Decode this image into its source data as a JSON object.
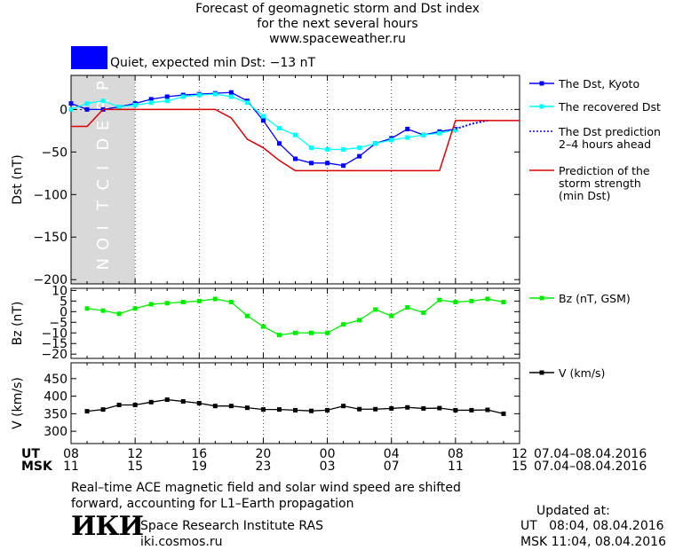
{
  "title": {
    "line1": "Forecast of geomagnetic storm and Dst index",
    "line2": "for the next several hours",
    "line3": "www.spaceweather.ru"
  },
  "status": {
    "text": "Quiet, expected min Dst: −13 nT",
    "color": "#0000ff"
  },
  "colors": {
    "dst_kyoto": "#0000ff",
    "dst_recovered": "#00ffff",
    "prediction_strength": "#dd0000",
    "bz": "#00ee00",
    "v": "#000000",
    "prediction_band": "#d9d9d9"
  },
  "chart_data": [
    {
      "type": "line",
      "panel": "dst",
      "ylabel": "Dst (nT)",
      "ylim": [
        -205,
        40
      ],
      "yticks": [
        0,
        -50,
        -100,
        -150,
        -200
      ],
      "ytick_labels": [
        "0",
        "−50",
        "−100",
        "−150",
        "−200"
      ],
      "prediction_band_x": [
        8,
        12
      ],
      "prediction_band_label": "PREDICTION",
      "series": [
        {
          "name": "The Dst, Kyoto",
          "marker": "square",
          "x": [
            8,
            9,
            10,
            11,
            12,
            13,
            14,
            15,
            16,
            17,
            18,
            19,
            20,
            21,
            22,
            23,
            24,
            25,
            26,
            27,
            28,
            29,
            30,
            31,
            32
          ],
          "values": [
            7,
            0,
            0,
            3,
            7,
            12,
            15,
            17,
            18,
            19,
            20,
            10,
            -13,
            -40,
            -58,
            -63,
            -63,
            -66,
            -55,
            -40,
            -34,
            -23,
            -30,
            -26,
            -23
          ]
        },
        {
          "name": "The recovered Dst",
          "marker": "square",
          "x": [
            8,
            9,
            10,
            11,
            12,
            13,
            14,
            15,
            16,
            17,
            18,
            19,
            20,
            21,
            22,
            23,
            24,
            25,
            26,
            27,
            28,
            29,
            30,
            31,
            32
          ],
          "values": [
            0,
            7,
            10,
            3,
            5,
            8,
            10,
            15,
            17,
            18,
            15,
            8,
            -8,
            -22,
            -30,
            -45,
            -47,
            -47,
            -45,
            -40,
            -36,
            -33,
            -30,
            -28,
            -24
          ]
        },
        {
          "name": "The Dst prediction",
          "name_line2": "2–4 hours ahead",
          "style": "dotted",
          "x": [
            32,
            32.5,
            33,
            33.5,
            34
          ],
          "values": [
            -23,
            -20,
            -17,
            -15,
            -13
          ]
        },
        {
          "name": "Prediction of the",
          "name_line2": "storm strength",
          "name_line3": "(min Dst)",
          "style": "step",
          "x": [
            8,
            9,
            10,
            17,
            18,
            19,
            20,
            21,
            22,
            23,
            31,
            32,
            36
          ],
          "values": [
            -20,
            -20,
            0,
            0,
            -10,
            -35,
            -45,
            -60,
            -72,
            -72,
            -72,
            -13,
            -13
          ]
        }
      ]
    },
    {
      "type": "line",
      "panel": "bz",
      "ylabel": "Bz (nT)",
      "ylim": [
        -22,
        11
      ],
      "yticks": [
        10,
        5,
        0,
        -5,
        -10,
        -15,
        -20
      ],
      "ytick_labels": [
        "10",
        "5",
        "0",
        "−5",
        "−10",
        "−15",
        "−20"
      ],
      "series": [
        {
          "name": "Bz (nT, GSM)",
          "marker": "square",
          "x": [
            9,
            10,
            11,
            12,
            13,
            14,
            15,
            16,
            17,
            18,
            19,
            20,
            21,
            22,
            23,
            24,
            25,
            26,
            27,
            28,
            29,
            30,
            31,
            32,
            33,
            34,
            35
          ],
          "values": [
            1.5,
            0.5,
            -1,
            1.5,
            3.5,
            4,
            4.5,
            5,
            6,
            4.5,
            -2,
            -7,
            -11,
            -10,
            -10,
            -10,
            -6,
            -4,
            1,
            -2,
            2,
            -0.5,
            5.5,
            4.5,
            5,
            6,
            4.5
          ]
        }
      ]
    },
    {
      "type": "line",
      "panel": "v",
      "ylabel": "V (km/s)",
      "ylim": [
        265,
        495
      ],
      "yticks": [
        300,
        350,
        400,
        450
      ],
      "ytick_labels": [
        "300",
        "350",
        "400",
        "450"
      ],
      "series": [
        {
          "name": "V (km/s)",
          "marker": "square",
          "x": [
            9,
            10,
            11,
            12,
            13,
            14,
            15,
            16,
            17,
            18,
            19,
            20,
            21,
            22,
            23,
            24,
            25,
            26,
            27,
            28,
            29,
            30,
            31,
            32,
            33,
            34,
            35
          ],
          "values": [
            357,
            362,
            375,
            375,
            383,
            390,
            385,
            380,
            372,
            372,
            367,
            362,
            362,
            360,
            358,
            360,
            372,
            363,
            363,
            365,
            368,
            365,
            366,
            360,
            360,
            361,
            350
          ]
        }
      ]
    }
  ],
  "x_axis": {
    "range": [
      8,
      36
    ],
    "ut_label": "UT",
    "msk_label": "MSK",
    "ut_ticks": [
      "08",
      "12",
      "16",
      "20",
      "00",
      "04",
      "08",
      "12"
    ],
    "msk_ticks": [
      "11",
      "15",
      "19",
      "23",
      "03",
      "07",
      "11",
      "15"
    ],
    "ut_range": "07.04–08.04.2016",
    "msk_range": "07.04–08.04.2016"
  },
  "note": {
    "line1": "Real–time ACE magnetic field and solar wind speed are shifted",
    "line2": "forward, accounting for L1–Earth propagation"
  },
  "institute": {
    "logo": "ИКИ",
    "name": "Space Research Institute RAS",
    "url": "iki.cosmos.ru"
  },
  "updated": {
    "heading": "Updated at:",
    "ut": "UT   08:04, 08.04.2016",
    "msk": "MSK 11:04, 08.04.2016"
  }
}
